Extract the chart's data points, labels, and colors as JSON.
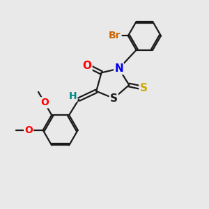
{
  "bg_color": "#e9e9e9",
  "bond_color": "#1a1a1a",
  "bond_lw": 1.6,
  "atom_colors": {
    "O": "#ff0000",
    "N": "#0000ee",
    "S_yellow": "#ccaa00",
    "S_black": "#1a1a1a",
    "Br": "#cc6600",
    "H": "#008888"
  }
}
